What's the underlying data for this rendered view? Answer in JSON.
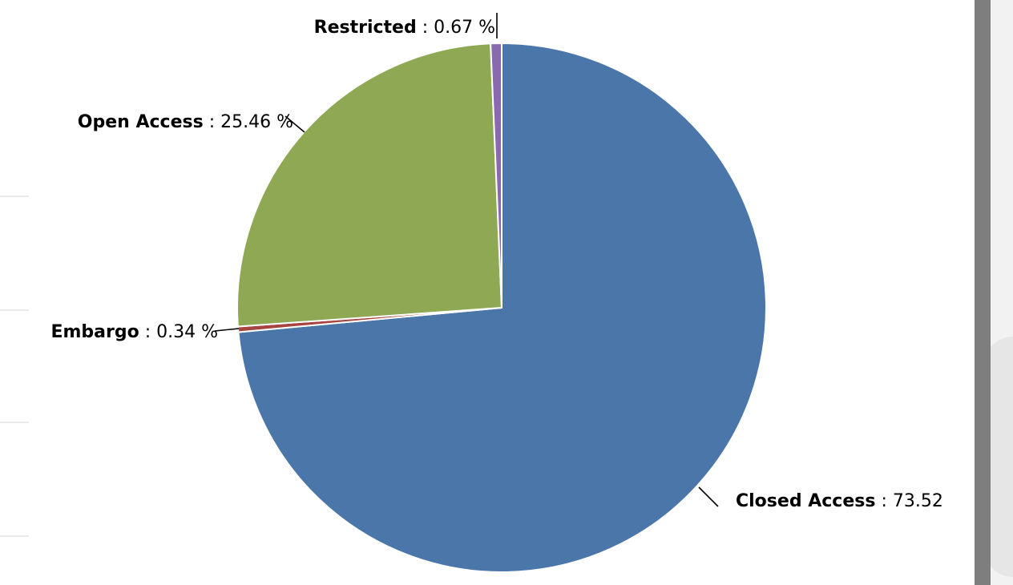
{
  "chart_data": {
    "type": "pie",
    "unit": "%",
    "slices": [
      {
        "name": "Closed Access",
        "value": 73.52,
        "label_value": "73.52",
        "color": "#4a76aa"
      },
      {
        "name": "Embargo",
        "value": 0.34,
        "label_value": "0.34 %",
        "color": "#a8433f"
      },
      {
        "name": "Open Access",
        "value": 25.46,
        "label_value": "25.46 %",
        "color": "#8ea854"
      },
      {
        "name": "Restricted",
        "value": 0.67,
        "label_value": "0.67 %",
        "color": "#8a6aaf"
      }
    ]
  },
  "colors": {
    "slice_border": "#ffffff",
    "leader_line": "#000000",
    "background": "#ffffff",
    "scrollbar": "#7e7e7e"
  }
}
